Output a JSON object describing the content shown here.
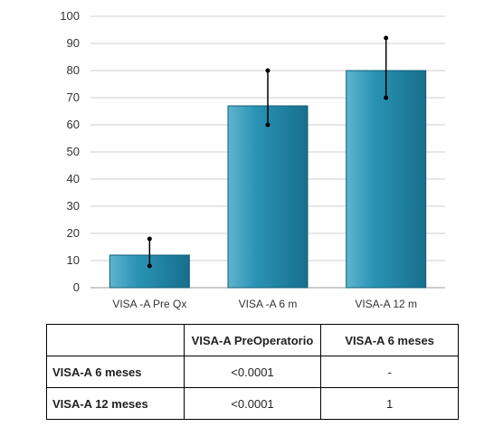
{
  "chart_data": {
    "type": "bar",
    "categories": [
      "VISA -A Pre Qx",
      "VISA -A 6 m",
      "VISA-A 12 m"
    ],
    "values": [
      12,
      67,
      80
    ],
    "error_bars": [
      {
        "low": 8,
        "high": 18
      },
      {
        "low": 60,
        "high": 80
      },
      {
        "low": 70,
        "high": 92
      }
    ],
    "ylim": [
      0,
      100
    ],
    "yticks": [
      0,
      10,
      20,
      30,
      40,
      50,
      60,
      70,
      80,
      90,
      100
    ],
    "grid": true,
    "legend": "none",
    "bar_color": "#1f86a6",
    "bar_edge_color": "#0f5f78"
  },
  "table": {
    "headers": [
      "",
      "VISA-A PreOperatorio",
      "VISA-A 6 meses"
    ],
    "rows": [
      {
        "label": "VISA-A 6 meses",
        "values": [
          "<0.0001",
          "-"
        ]
      },
      {
        "label": "VISA-A 12 meses",
        "values": [
          "<0.0001",
          "1"
        ]
      }
    ]
  }
}
